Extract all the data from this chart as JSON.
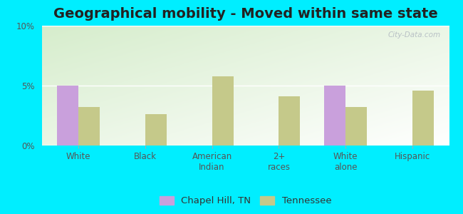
{
  "title": "Geographical mobility - Moved within same state",
  "categories": [
    "White",
    "Black",
    "American\nIndian",
    "2+\nraces",
    "White\nalone",
    "Hispanic"
  ],
  "chapel_hill_values": [
    5.0,
    0,
    0,
    0,
    5.0,
    0
  ],
  "tennessee_values": [
    3.2,
    2.6,
    5.8,
    4.1,
    3.2,
    4.6
  ],
  "chapel_hill_color": "#c9a0dc",
  "tennessee_color": "#c5c98a",
  "background_outer": "#00eeff",
  "bg_top_left": "#d6edcc",
  "bg_bottom_right": "#ffffff",
  "ylim": [
    0,
    10
  ],
  "yticks": [
    0,
    5,
    10
  ],
  "ytick_labels": [
    "0%",
    "5%",
    "10%"
  ],
  "bar_width": 0.32,
  "legend_chapel_hill": "Chapel Hill, TN",
  "legend_tennessee": "Tennessee",
  "title_fontsize": 14,
  "tick_fontsize": 8.5,
  "legend_fontsize": 9.5,
  "watermark": "City-Data.com"
}
